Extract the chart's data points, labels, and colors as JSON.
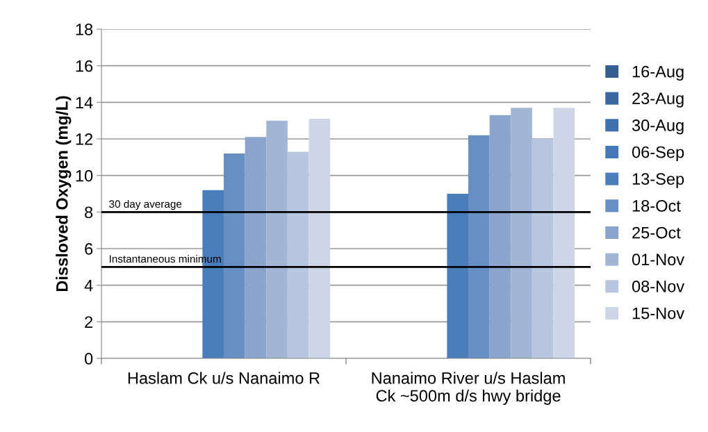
{
  "chart_data": {
    "type": "bar",
    "ylabel": "Dissloved Oxygen (mg/L)",
    "categories": [
      "Haslam Ck u/s Nanaimo R",
      "Nanaimo River u/s Haslam\nCk ~500m d/s hwy bridge"
    ],
    "series": [
      {
        "name": "16-Aug",
        "color": "#355f91",
        "values": [
          null,
          null
        ]
      },
      {
        "name": "23-Aug",
        "color": "#3a67a0",
        "values": [
          null,
          null
        ]
      },
      {
        "name": "30-Aug",
        "color": "#4070ae",
        "values": [
          null,
          null
        ]
      },
      {
        "name": "06-Sep",
        "color": "#4677b8",
        "values": [
          null,
          null
        ]
      },
      {
        "name": "13-Sep",
        "color": "#4a7ebb",
        "values": [
          9.2,
          9.0
        ]
      },
      {
        "name": "18-Oct",
        "color": "#678fc4",
        "values": [
          11.2,
          12.2
        ]
      },
      {
        "name": "25-Oct",
        "color": "#8ba4cb",
        "values": [
          12.1,
          13.3
        ]
      },
      {
        "name": "01-Nov",
        "color": "#a3b5d5",
        "values": [
          13.0,
          13.7
        ]
      },
      {
        "name": "08-Nov",
        "color": "#b9c6df",
        "values": [
          11.3,
          12.0
        ]
      },
      {
        "name": "15-Nov",
        "color": "#cdd6e7",
        "values": [
          13.1,
          13.7
        ]
      }
    ],
    "ylim": [
      0,
      18
    ],
    "yticks": [
      0,
      2,
      4,
      6,
      8,
      10,
      12,
      14,
      16,
      18
    ],
    "grid": "y",
    "legend": "right",
    "ref_lines": [
      {
        "axis": "y",
        "value": 8,
        "label": "30 day average",
        "color": "#000000"
      },
      {
        "axis": "y",
        "value": 5,
        "label": "Instantaneous minimum",
        "color": "#000000"
      }
    ]
  }
}
